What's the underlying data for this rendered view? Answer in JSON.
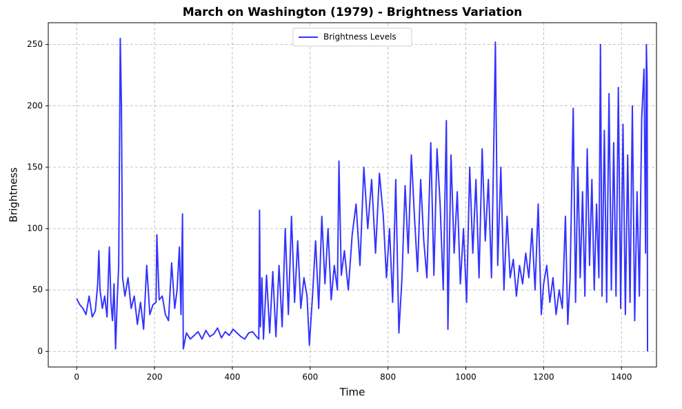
{
  "chart_data": {
    "type": "line",
    "title": "March on Washington (1979) - Brightness Variation",
    "x_label": "Time",
    "y_label": "Brightness",
    "x": [
      0,
      8,
      16,
      24,
      32,
      40,
      48,
      54,
      57,
      60,
      66,
      72,
      78,
      84,
      88,
      92,
      96,
      100,
      104,
      108,
      112,
      115,
      118,
      124,
      132,
      140,
      148,
      156,
      164,
      172,
      180,
      188,
      196,
      204,
      206,
      212,
      220,
      228,
      236,
      244,
      252,
      258,
      264,
      268,
      272,
      274,
      282,
      292,
      302,
      312,
      322,
      332,
      342,
      352,
      362,
      372,
      382,
      392,
      402,
      412,
      422,
      432,
      442,
      452,
      462,
      468,
      470,
      472,
      476,
      480,
      488,
      496,
      504,
      512,
      520,
      528,
      536,
      544,
      552,
      560,
      568,
      576,
      584,
      592,
      598,
      606,
      614,
      622,
      630,
      638,
      646,
      654,
      662,
      670,
      674,
      680,
      688,
      698,
      708,
      718,
      728,
      738,
      748,
      758,
      768,
      778,
      788,
      796,
      804,
      812,
      820,
      828,
      836,
      844,
      852,
      860,
      868,
      876,
      884,
      892,
      900,
      910,
      918,
      926,
      934,
      942,
      950,
      954,
      962,
      970,
      978,
      986,
      994,
      1002,
      1010,
      1018,
      1026,
      1034,
      1042,
      1050,
      1058,
      1066,
      1072,
      1076,
      1082,
      1090,
      1098,
      1106,
      1114,
      1122,
      1130,
      1138,
      1146,
      1154,
      1162,
      1170,
      1178,
      1186,
      1194,
      1200,
      1208,
      1216,
      1224,
      1232,
      1240,
      1248,
      1256,
      1262,
      1268,
      1276,
      1282,
      1288,
      1294,
      1300,
      1306,
      1312,
      1318,
      1324,
      1330,
      1336,
      1342,
      1346,
      1350,
      1356,
      1362,
      1368,
      1374,
      1380,
      1386,
      1392,
      1398,
      1404,
      1410,
      1416,
      1422,
      1428,
      1434,
      1440,
      1446,
      1452,
      1458,
      1462,
      1464,
      1466,
      1467
    ],
    "series": [
      {
        "name": "Brightness Levels",
        "color": "#3333ff",
        "values": [
          43,
          38,
          35,
          30,
          45,
          28,
          33,
          55,
          82,
          50,
          35,
          45,
          28,
          85,
          40,
          25,
          55,
          2,
          40,
          70,
          255,
          200,
          60,
          45,
          60,
          35,
          45,
          22,
          40,
          18,
          70,
          30,
          38,
          40,
          95,
          42,
          45,
          30,
          25,
          72,
          35,
          50,
          85,
          30,
          112,
          2,
          15,
          10,
          13,
          16,
          10,
          17,
          12,
          14,
          19,
          11,
          16,
          13,
          18,
          15,
          12,
          10,
          15,
          16,
          12,
          10,
          115,
          20,
          60,
          10,
          62,
          15,
          65,
          12,
          70,
          20,
          100,
          30,
          110,
          40,
          90,
          35,
          60,
          45,
          5,
          45,
          90,
          35,
          110,
          55,
          100,
          42,
          70,
          50,
          155,
          62,
          82,
          50,
          95,
          120,
          70,
          150,
          100,
          140,
          80,
          145,
          110,
          60,
          100,
          40,
          140,
          15,
          60,
          135,
          80,
          160,
          110,
          65,
          140,
          90,
          60,
          170,
          62,
          165,
          120,
          50,
          188,
          18,
          160,
          80,
          130,
          55,
          100,
          40,
          150,
          80,
          140,
          60,
          165,
          90,
          140,
          60,
          170,
          252,
          70,
          150,
          50,
          110,
          60,
          75,
          45,
          70,
          55,
          80,
          60,
          100,
          50,
          120,
          30,
          55,
          70,
          40,
          60,
          30,
          50,
          35,
          110,
          22,
          60,
          198,
          40,
          150,
          60,
          130,
          45,
          165,
          70,
          140,
          50,
          120,
          60,
          250,
          45,
          180,
          40,
          210,
          50,
          170,
          45,
          215,
          35,
          185,
          30,
          160,
          40,
          200,
          25,
          130,
          45,
          190,
          230,
          80,
          250,
          220,
          0
        ]
      }
    ],
    "xlim": [
      -73,
      1490
    ],
    "ylim": [
      -12.75,
      267.75
    ],
    "xticks": [
      0,
      200,
      400,
      600,
      800,
      1000,
      1200,
      1400
    ],
    "yticks": [
      0,
      50,
      100,
      150,
      200,
      250
    ],
    "grid": true,
    "legend": "upper center"
  }
}
